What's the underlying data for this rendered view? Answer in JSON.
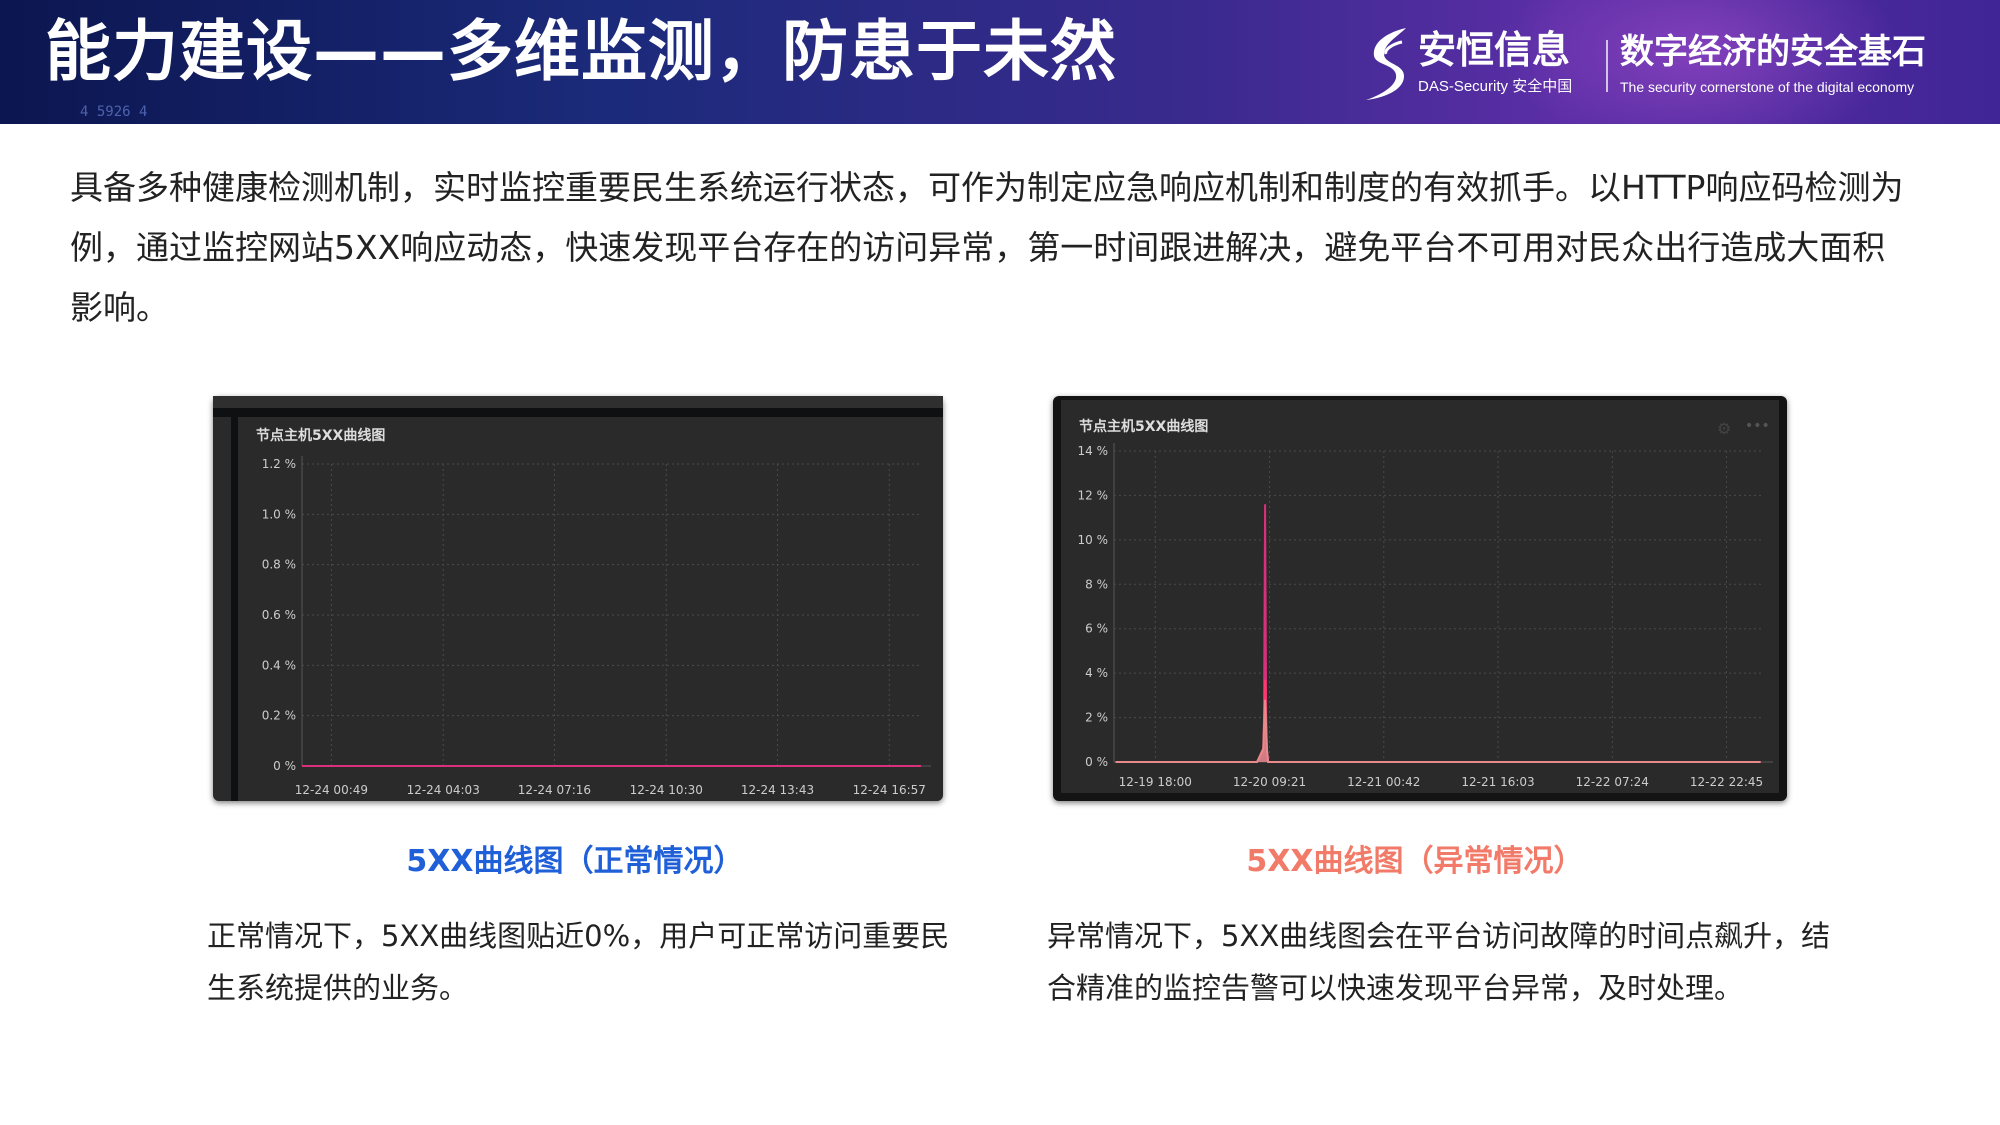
{
  "header": {
    "title": "能力建设——多维监测，防患于未然",
    "background_codes": "4  5926 4",
    "brand_cn": "安恒信息",
    "brand_en": "DAS-Security 安全中国",
    "slogan": "数字经济的安全基石",
    "slogan_en": "The security cornerstone of the digital economy"
  },
  "intro": "具备多种健康检测机制，实时监控重要民生系统运行状态，可作为制定应急响应机制和制度的有效抓手。以HTTP响应码检测为例，通过监控网站5XX响应动态，快速发现平台存在的访问异常，第一时间跟进解决，避免平台不可用对民众出行造成大面积影响。",
  "colors": {
    "caption_normal": "#1f5fd8",
    "caption_abnormal": "#f17a68",
    "panel": "#2a2a2b",
    "series": "#d8307a",
    "series_fill": "#a0225e",
    "series_secondary": "#e88a8a"
  },
  "left": {
    "caption": "5XX曲线图（正常情况）",
    "desc": "正常情况下，5XX曲线图贴近0%，用户可正常访问重要民生系统提供的业务。"
  },
  "right": {
    "caption": "5XX曲线图（异常情况）",
    "desc": "异常情况下，5XX曲线图会在平台访问故障的时间点飙升，结合精准的监控告警可以快速发现平台异常，及时处理。",
    "icons": [
      "gear-icon",
      "more-icon"
    ]
  },
  "chart_data": [
    {
      "type": "area",
      "title": "节点主机5XX曲线图",
      "yticks": [
        "0 %",
        "0.2 %",
        "0.4 %",
        "0.6 %",
        "0.8 %",
        "1.0 %",
        "1.2 %"
      ],
      "ylim": [
        0,
        1.2
      ],
      "xticks": [
        "12-24 00:49",
        "12-24 04:03",
        "12-24 07:16",
        "12-24 10:30",
        "12-24 13:43",
        "12-24 16:57"
      ],
      "xlim": [
        "12-23 23:58",
        "12-24 17:52"
      ],
      "grid": true,
      "series": [
        {
          "x": [
            "12-23 23:58",
            "12-24 17:52"
          ],
          "y": [
            0,
            0
          ]
        }
      ]
    },
    {
      "type": "area",
      "title": "节点主机5XX曲线图",
      "yticks": [
        "0 %",
        "2 %",
        "4 %",
        "6 %",
        "8 %",
        "10 %",
        "12 %",
        "14 %"
      ],
      "ylim": [
        0,
        14
      ],
      "xticks": [
        "12-19 18:00",
        "12-20 09:21",
        "12-21 00:42",
        "12-21 16:03",
        "12-22 07:24",
        "12-22 22:45"
      ],
      "xlim": [
        "12-19 12:27",
        "12-23 03:39"
      ],
      "grid": true,
      "series": [
        {
          "x": [
            "12-19 12:40",
            "12-20 07:40",
            "12-20 08:35",
            "12-20 08:45",
            "12-20 08:55",
            "12-20 09:10",
            "12-23 03:20"
          ],
          "y": [
            0,
            0,
            0.3,
            11.6,
            0.3,
            0,
            0
          ]
        },
        {
          "x": [
            "12-19 12:40",
            "12-20 07:40",
            "12-20 08:30",
            "12-20 08:45",
            "12-20 09:00",
            "12-20 09:10",
            "12-23 03:20"
          ],
          "y": [
            0,
            0,
            0.5,
            3.7,
            0.5,
            0,
            0
          ]
        },
        {
          "x": [
            "12-19 12:40",
            "12-20 07:40",
            "12-20 08:30",
            "12-20 08:45",
            "12-20 09:00",
            "12-20 09:10",
            "12-23 03:20"
          ],
          "y": [
            0,
            0,
            0.6,
            2.8,
            0.6,
            0,
            0
          ]
        }
      ]
    }
  ]
}
